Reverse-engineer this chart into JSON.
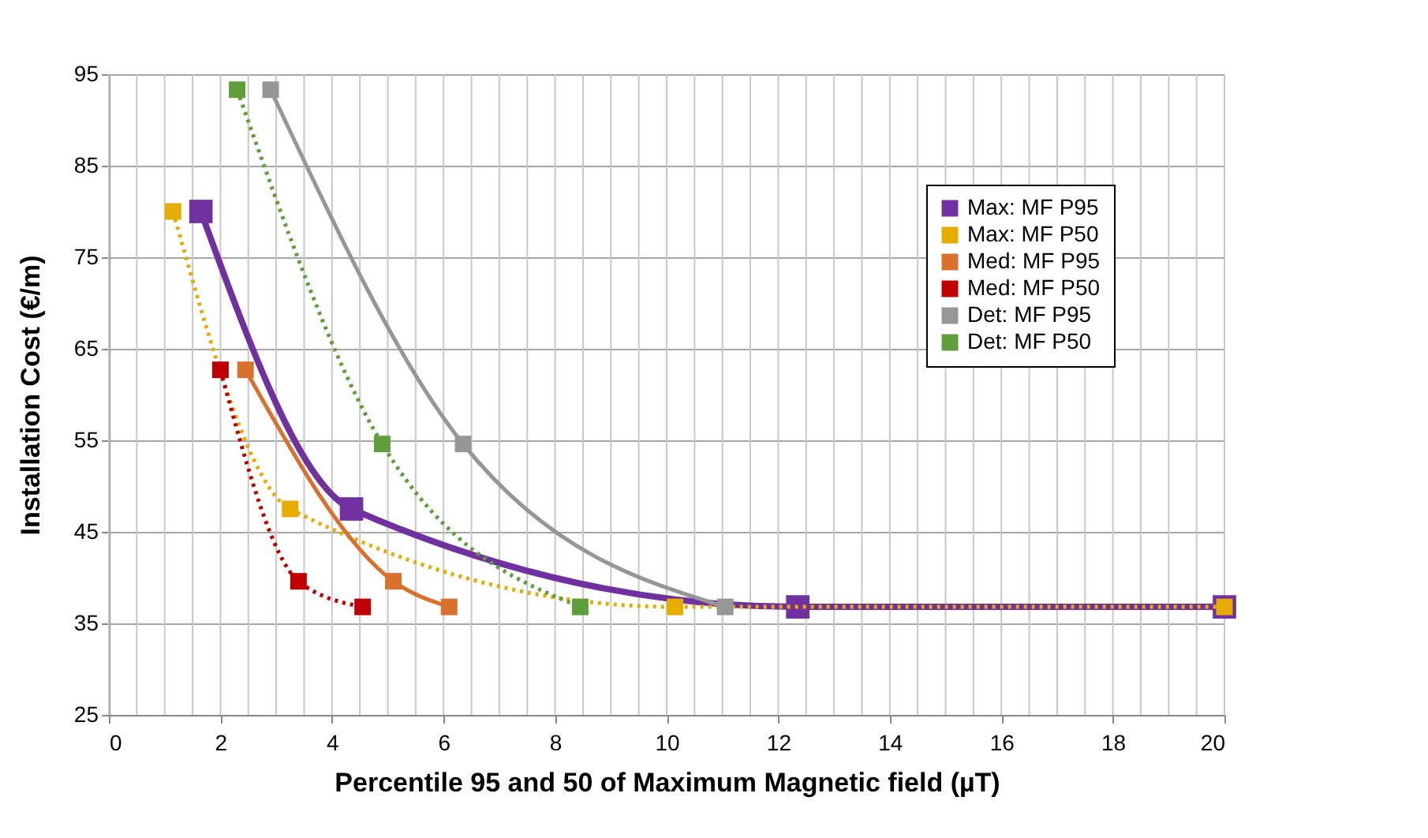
{
  "chart_data": {
    "type": "line",
    "xlabel": "Percentile 95 and 50 of Maximum Magnetic field  (µT)",
    "ylabel": "Installation Cost (€/m)",
    "xlim": [
      0,
      20
    ],
    "ylim": [
      25,
      95
    ],
    "xticks": [
      0,
      {
        "value": 0.5,
        "label": null
      },
      {
        "value": 1,
        "label": null
      },
      {
        "value": 1.5,
        "label": null
      },
      2,
      {
        "value": 2.5,
        "label": null
      },
      {
        "value": 3,
        "label": null
      },
      {
        "value": 3.5,
        "label": null
      },
      4,
      {
        "value": 4.5,
        "label": null
      },
      {
        "value": 5,
        "label": null
      },
      {
        "value": 5.5,
        "label": null
      },
      6,
      {
        "value": 6.5,
        "label": null
      },
      {
        "value": 7,
        "label": null
      },
      {
        "value": 7.5,
        "label": null
      },
      8,
      {
        "value": 8.5,
        "label": null
      },
      {
        "value": 9,
        "label": null
      },
      {
        "value": 9.5,
        "label": null
      },
      10,
      {
        "value": 10.5,
        "label": null
      },
      {
        "value": 11,
        "label": null
      },
      {
        "value": 11.5,
        "label": null
      },
      12,
      {
        "value": 12.5,
        "label": null
      },
      {
        "value": 13,
        "label": null
      },
      {
        "value": 13.5,
        "label": null
      },
      14,
      {
        "value": 14.5,
        "label": null
      },
      {
        "value": 15,
        "label": null
      },
      {
        "value": 15.5,
        "label": null
      },
      16,
      {
        "value": 16.5,
        "label": null
      },
      {
        "value": 17,
        "label": null
      },
      {
        "value": 17.5,
        "label": null
      },
      18,
      {
        "value": 18.5,
        "label": null
      },
      {
        "value": 19,
        "label": null
      },
      {
        "value": 19.5,
        "label": null
      },
      20
    ],
    "yticks": [
      25,
      35,
      45,
      55,
      65,
      75,
      85,
      95
    ],
    "grid": true,
    "legend": "top right",
    "marker": "square",
    "series": [
      {
        "name": "Max: MF P95",
        "color": "#7030a0",
        "line_style": "solid",
        "x": [
          1.65,
          4.35,
          12.35,
          20
        ],
        "values": [
          80,
          47.5,
          36.8,
          36.8
        ]
      },
      {
        "name": "Max: MF P50",
        "color": "#e6ac00",
        "line_style": "dotted",
        "x": [
          1.15,
          3.25,
          10.15,
          20
        ],
        "values": [
          80,
          47.5,
          36.8,
          36.8
        ]
      },
      {
        "name": "Med: MF P95",
        "color": "#d9702c",
        "line_style": "solid",
        "x": [
          2.45,
          5.1,
          6.1
        ],
        "values": [
          62.7,
          39.6,
          36.8
        ]
      },
      {
        "name": "Med: MF P50",
        "color": "#c00000",
        "line_style": "dotted",
        "x": [
          2.0,
          3.4,
          4.55
        ],
        "values": [
          62.7,
          39.6,
          36.8
        ]
      },
      {
        "name": "Det: MF P95",
        "color": "#969696",
        "line_style": "solid",
        "x": [
          2.9,
          6.35,
          11.05
        ],
        "values": [
          93.3,
          54.6,
          36.8
        ]
      },
      {
        "name": "Det: MF P50",
        "color": "#5f9e3a",
        "line_style": "dotted",
        "x": [
          2.3,
          4.9,
          8.45
        ],
        "values": [
          93.3,
          54.6,
          36.8
        ]
      }
    ]
  }
}
